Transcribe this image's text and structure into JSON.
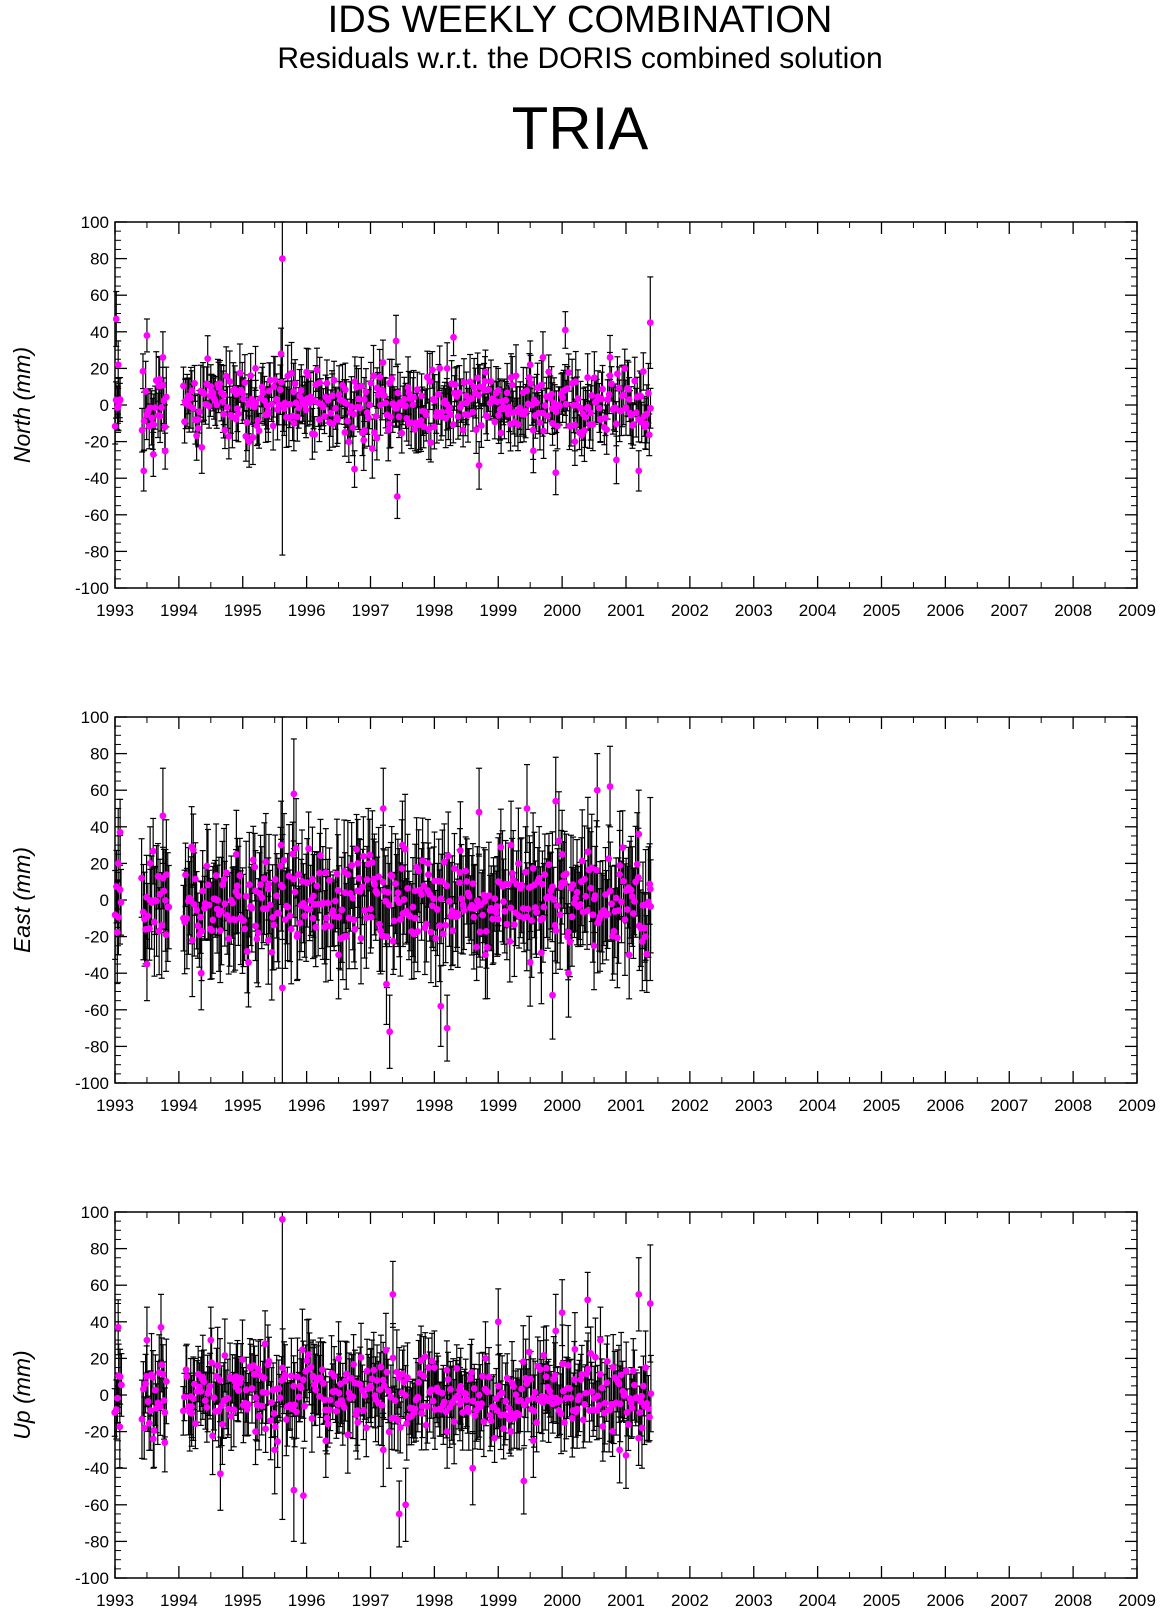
{
  "header": {
    "title": "IDS WEEKLY COMBINATION",
    "subtitle": "Residuals w.r.t. the DORIS combined solution",
    "station": "TRIA"
  },
  "colors": {
    "marker": "#ff00ff",
    "errorbar": "#000000",
    "axes": "#000000",
    "background": "#ffffff"
  },
  "chart_data": [
    {
      "type": "scatter",
      "panel": "north",
      "ylabel": "North (mm)",
      "xlim": [
        1993,
        2009
      ],
      "ylim": [
        -100,
        100
      ],
      "x_ticks": [
        "1993",
        "1994",
        "1995",
        "1996",
        "1997",
        "1998",
        "1999",
        "2000",
        "2001",
        "2002",
        "2003",
        "2004",
        "2005",
        "2006",
        "2007",
        "2008",
        "2009"
      ],
      "y_ticks": [
        "100",
        "80",
        "60",
        "40",
        "20",
        "0",
        "-20",
        "-40",
        "-60",
        "-80",
        "-100"
      ],
      "grid": false,
      "points": [
        {
          "x": 1993.02,
          "y": 47,
          "err": 15
        },
        {
          "x": 1993.05,
          "y": 22,
          "err": 13
        },
        {
          "x": 1993.08,
          "y": 3,
          "err": 12
        },
        {
          "x": 1993.45,
          "y": -36,
          "err": 11
        },
        {
          "x": 1993.5,
          "y": 38,
          "err": 9
        },
        {
          "x": 1993.6,
          "y": -27,
          "err": 12
        },
        {
          "x": 1993.7,
          "y": 14,
          "err": 12
        },
        {
          "x": 1993.75,
          "y": 26,
          "err": 14
        },
        {
          "x": 1993.78,
          "y": -12,
          "err": 12
        },
        {
          "x": 1994.1,
          "y": 2,
          "err": 12
        },
        {
          "x": 1994.3,
          "y": -8,
          "err": 14
        },
        {
          "x": 1994.5,
          "y": 10,
          "err": 12
        },
        {
          "x": 1994.7,
          "y": -5,
          "err": 13
        },
        {
          "x": 1994.9,
          "y": 6,
          "err": 12
        },
        {
          "x": 1995.1,
          "y": -20,
          "err": 14
        },
        {
          "x": 1995.2,
          "y": 20,
          "err": 12
        },
        {
          "x": 1995.4,
          "y": -5,
          "err": 15
        },
        {
          "x": 1995.6,
          "y": 28,
          "err": 14
        },
        {
          "x": 1995.62,
          "y": 80,
          "err": 162
        },
        {
          "x": 1995.8,
          "y": -10,
          "err": 15
        },
        {
          "x": 1996.0,
          "y": 18,
          "err": 13
        },
        {
          "x": 1996.2,
          "y": -8,
          "err": 12
        },
        {
          "x": 1996.4,
          "y": 5,
          "err": 12
        },
        {
          "x": 1996.6,
          "y": -15,
          "err": 13
        },
        {
          "x": 1996.75,
          "y": -35,
          "err": 10
        },
        {
          "x": 1996.9,
          "y": 3,
          "err": 12
        },
        {
          "x": 1997.1,
          "y": -18,
          "err": 12
        },
        {
          "x": 1997.3,
          "y": 12,
          "err": 13
        },
        {
          "x": 1997.42,
          "y": -50,
          "err": 12
        },
        {
          "x": 1997.4,
          "y": 35,
          "err": 14
        },
        {
          "x": 1997.6,
          "y": -10,
          "err": 12
        },
        {
          "x": 1997.8,
          "y": 5,
          "err": 12
        },
        {
          "x": 1998.0,
          "y": -12,
          "err": 12
        },
        {
          "x": 1998.2,
          "y": 20,
          "err": 14
        },
        {
          "x": 1998.3,
          "y": 37,
          "err": 10
        },
        {
          "x": 1998.5,
          "y": 5,
          "err": 13
        },
        {
          "x": 1998.7,
          "y": -33,
          "err": 13
        },
        {
          "x": 1998.8,
          "y": 18,
          "err": 12
        },
        {
          "x": 1999.0,
          "y": 8,
          "err": 12
        },
        {
          "x": 1999.2,
          "y": 15,
          "err": 13
        },
        {
          "x": 1999.4,
          "y": -5,
          "err": 12
        },
        {
          "x": 1999.5,
          "y": 22,
          "err": 13
        },
        {
          "x": 1999.55,
          "y": -25,
          "err": 12
        },
        {
          "x": 1999.7,
          "y": 26,
          "err": 14
        },
        {
          "x": 1999.85,
          "y": -10,
          "err": 12
        },
        {
          "x": 1999.9,
          "y": -37,
          "err": 12
        },
        {
          "x": 2000.05,
          "y": 41,
          "err": 10
        },
        {
          "x": 2000.2,
          "y": -20,
          "err": 13
        },
        {
          "x": 2000.4,
          "y": 15,
          "err": 13
        },
        {
          "x": 2000.6,
          "y": -8,
          "err": 12
        },
        {
          "x": 2000.75,
          "y": 26,
          "err": 12
        },
        {
          "x": 2000.85,
          "y": -30,
          "err": 13
        },
        {
          "x": 2001.05,
          "y": 3,
          "err": 12
        },
        {
          "x": 2001.2,
          "y": -36,
          "err": 11
        },
        {
          "x": 2001.3,
          "y": -12,
          "err": 12
        },
        {
          "x": 2001.38,
          "y": 45,
          "err": 25
        }
      ],
      "noise": {
        "seed": 11,
        "amplitude_mm": 16,
        "err_mm": 13,
        "spacing_yr": 0.0192,
        "segments": [
          [
            1993.0,
            1993.08
          ],
          [
            1993.42,
            1993.82
          ],
          [
            1994.07,
            2001.4
          ]
        ]
      }
    },
    {
      "type": "scatter",
      "panel": "east",
      "ylabel": "East (mm)",
      "xlim": [
        1993,
        2009
      ],
      "ylim": [
        -100,
        100
      ],
      "x_ticks": [
        "1993",
        "1994",
        "1995",
        "1996",
        "1997",
        "1998",
        "1999",
        "2000",
        "2001",
        "2002",
        "2003",
        "2004",
        "2005",
        "2006",
        "2007",
        "2008",
        "2009"
      ],
      "y_ticks": [
        "100",
        "80",
        "60",
        "40",
        "20",
        "0",
        "-20",
        "-40",
        "-60",
        "-80",
        "-100"
      ],
      "grid": false,
      "points": [
        {
          "x": 1993.05,
          "y": 20,
          "err": 30
        },
        {
          "x": 1993.08,
          "y": 37,
          "err": 18
        },
        {
          "x": 1993.5,
          "y": -35,
          "err": 20
        },
        {
          "x": 1993.55,
          "y": 20,
          "err": 20
        },
        {
          "x": 1993.75,
          "y": 46,
          "err": 26
        },
        {
          "x": 1993.8,
          "y": -19,
          "err": 20
        },
        {
          "x": 1994.2,
          "y": 29,
          "err": 22
        },
        {
          "x": 1994.35,
          "y": -40,
          "err": 20
        },
        {
          "x": 1994.6,
          "y": -5,
          "err": 24
        },
        {
          "x": 1994.9,
          "y": 25,
          "err": 24
        },
        {
          "x": 1995.2,
          "y": 5,
          "err": 22
        },
        {
          "x": 1995.4,
          "y": -22,
          "err": 24
        },
        {
          "x": 1995.6,
          "y": 30,
          "err": 24
        },
        {
          "x": 1995.62,
          "y": -48,
          "err": 148
        },
        {
          "x": 1995.8,
          "y": 58,
          "err": 30
        },
        {
          "x": 1995.85,
          "y": -20,
          "err": 24
        },
        {
          "x": 1996.1,
          "y": -10,
          "err": 22
        },
        {
          "x": 1996.3,
          "y": 15,
          "err": 24
        },
        {
          "x": 1996.5,
          "y": -30,
          "err": 24
        },
        {
          "x": 1996.8,
          "y": 20,
          "err": 24
        },
        {
          "x": 1997.0,
          "y": -5,
          "err": 24
        },
        {
          "x": 1997.2,
          "y": 50,
          "err": 22
        },
        {
          "x": 1997.25,
          "y": -46,
          "err": 22
        },
        {
          "x": 1997.3,
          "y": -72,
          "err": 20
        },
        {
          "x": 1997.5,
          "y": 30,
          "err": 24
        },
        {
          "x": 1997.7,
          "y": -10,
          "err": 24
        },
        {
          "x": 1997.9,
          "y": 20,
          "err": 24
        },
        {
          "x": 1998.1,
          "y": -58,
          "err": 22
        },
        {
          "x": 1998.2,
          "y": -70,
          "err": 18
        },
        {
          "x": 1998.4,
          "y": 15,
          "err": 24
        },
        {
          "x": 1998.7,
          "y": 48,
          "err": 24
        },
        {
          "x": 1998.8,
          "y": -30,
          "err": 24
        },
        {
          "x": 1999.0,
          "y": 10,
          "err": 24
        },
        {
          "x": 1999.2,
          "y": 30,
          "err": 24
        },
        {
          "x": 1999.45,
          "y": 50,
          "err": 24
        },
        {
          "x": 1999.5,
          "y": -34,
          "err": 24
        },
        {
          "x": 1999.7,
          "y": -10,
          "err": 24
        },
        {
          "x": 1999.9,
          "y": 54,
          "err": 24
        },
        {
          "x": 1999.85,
          "y": -52,
          "err": 24
        },
        {
          "x": 2000.0,
          "y": 25,
          "err": 24
        },
        {
          "x": 2000.1,
          "y": -40,
          "err": 24
        },
        {
          "x": 2000.3,
          "y": 10,
          "err": 24
        },
        {
          "x": 2000.5,
          "y": -25,
          "err": 24
        },
        {
          "x": 2000.55,
          "y": 60,
          "err": 20
        },
        {
          "x": 2000.75,
          "y": 62,
          "err": 22
        },
        {
          "x": 2000.9,
          "y": 14,
          "err": 24
        },
        {
          "x": 2001.05,
          "y": -30,
          "err": 24
        },
        {
          "x": 2001.2,
          "y": 36,
          "err": 24
        },
        {
          "x": 2001.3,
          "y": -20,
          "err": 24
        },
        {
          "x": 2001.38,
          "y": 6,
          "err": 50
        }
      ],
      "noise": {
        "seed": 23,
        "amplitude_mm": 22,
        "err_mm": 24,
        "spacing_yr": 0.0192,
        "segments": [
          [
            1993.0,
            1993.1
          ],
          [
            1993.42,
            1993.85
          ],
          [
            1994.07,
            2001.4
          ]
        ]
      }
    },
    {
      "type": "scatter",
      "panel": "up",
      "ylabel": "Up (mm)",
      "xlim": [
        1993,
        2009
      ],
      "ylim": [
        -100,
        100
      ],
      "x_ticks": [
        "1993",
        "1994",
        "1995",
        "1996",
        "1997",
        "1998",
        "1999",
        "2000",
        "2001",
        "2002",
        "2003",
        "2004",
        "2005",
        "2006",
        "2007",
        "2008",
        "2009"
      ],
      "y_ticks": [
        "100",
        "80",
        "60",
        "40",
        "20",
        "0",
        "-20",
        "-40",
        "-60",
        "-80",
        "-100"
      ],
      "grid": false,
      "points": [
        {
          "x": 1993.05,
          "y": 37,
          "err": 15
        },
        {
          "x": 1993.08,
          "y": 10,
          "err": 15
        },
        {
          "x": 1993.5,
          "y": 30,
          "err": 18
        },
        {
          "x": 1993.6,
          "y": -24,
          "err": 16
        },
        {
          "x": 1993.72,
          "y": 37,
          "err": 18
        },
        {
          "x": 1993.78,
          "y": -26,
          "err": 16
        },
        {
          "x": 1994.2,
          "y": -10,
          "err": 18
        },
        {
          "x": 1994.5,
          "y": 30,
          "err": 18
        },
        {
          "x": 1994.65,
          "y": -43,
          "err": 20
        },
        {
          "x": 1994.9,
          "y": 10,
          "err": 18
        },
        {
          "x": 1995.2,
          "y": -20,
          "err": 18
        },
        {
          "x": 1995.35,
          "y": 28,
          "err": 18
        },
        {
          "x": 1995.5,
          "y": -30,
          "err": 24
        },
        {
          "x": 1995.62,
          "y": 96,
          "err": 164
        },
        {
          "x": 1995.8,
          "y": -52,
          "err": 28
        },
        {
          "x": 1995.95,
          "y": -55,
          "err": 26
        },
        {
          "x": 1996.1,
          "y": 10,
          "err": 20
        },
        {
          "x": 1996.3,
          "y": -25,
          "err": 20
        },
        {
          "x": 1996.5,
          "y": 20,
          "err": 20
        },
        {
          "x": 1996.8,
          "y": -15,
          "err": 20
        },
        {
          "x": 1997.0,
          "y": 5,
          "err": 20
        },
        {
          "x": 1997.2,
          "y": -30,
          "err": 20
        },
        {
          "x": 1997.35,
          "y": 55,
          "err": 18
        },
        {
          "x": 1997.45,
          "y": -65,
          "err": 18
        },
        {
          "x": 1997.55,
          "y": -60,
          "err": 20
        },
        {
          "x": 1997.8,
          "y": -10,
          "err": 20
        },
        {
          "x": 1998.0,
          "y": 15,
          "err": 20
        },
        {
          "x": 1998.2,
          "y": -20,
          "err": 20
        },
        {
          "x": 1998.4,
          "y": -5,
          "err": 20
        },
        {
          "x": 1998.6,
          "y": -40,
          "err": 20
        },
        {
          "x": 1998.8,
          "y": 20,
          "err": 20
        },
        {
          "x": 1999.0,
          "y": 40,
          "err": 18
        },
        {
          "x": 1999.2,
          "y": -10,
          "err": 20
        },
        {
          "x": 1999.4,
          "y": -47,
          "err": 18
        },
        {
          "x": 1999.55,
          "y": -25,
          "err": 20
        },
        {
          "x": 1999.75,
          "y": 10,
          "err": 20
        },
        {
          "x": 1999.9,
          "y": 35,
          "err": 20
        },
        {
          "x": 2000.0,
          "y": 45,
          "err": 18
        },
        {
          "x": 2000.2,
          "y": 25,
          "err": 20
        },
        {
          "x": 2000.4,
          "y": 52,
          "err": 15
        },
        {
          "x": 2000.6,
          "y": 30,
          "err": 18
        },
        {
          "x": 2000.8,
          "y": 15,
          "err": 18
        },
        {
          "x": 2000.9,
          "y": -30,
          "err": 18
        },
        {
          "x": 2001.0,
          "y": -33,
          "err": 18
        },
        {
          "x": 2001.2,
          "y": 55,
          "err": 20
        },
        {
          "x": 2001.25,
          "y": -18,
          "err": 22
        },
        {
          "x": 2001.38,
          "y": 50,
          "err": 32
        }
      ],
      "noise": {
        "seed": 37,
        "amplitude_mm": 18,
        "err_mm": 18,
        "spacing_yr": 0.0192,
        "segments": [
          [
            1993.0,
            1993.1
          ],
          [
            1993.42,
            1993.82
          ],
          [
            1994.07,
            2001.4
          ]
        ]
      }
    }
  ]
}
